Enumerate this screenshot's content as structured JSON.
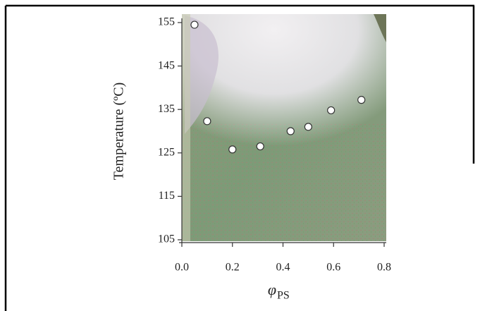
{
  "chart_data": {
    "type": "scatter",
    "x_label": "φ",
    "x_label_subscript": "PS",
    "y_label": "Temperature (ºC)",
    "x": [
      0.05,
      0.1,
      0.2,
      0.31,
      0.43,
      0.5,
      0.59,
      0.71
    ],
    "values": [
      154.5,
      132.3,
      125.8,
      126.5,
      130,
      131,
      134.8,
      137.2
    ],
    "color": "#ffffff",
    "xlim": [
      0,
      0.8
    ],
    "ylim": [
      105,
      155
    ],
    "xticks": [
      {
        "value": 0,
        "label": "0.0"
      },
      0.2,
      0.4,
      0.6,
      0.8
    ],
    "yticks": [
      105,
      115,
      125,
      135,
      145,
      155
    ]
  }
}
